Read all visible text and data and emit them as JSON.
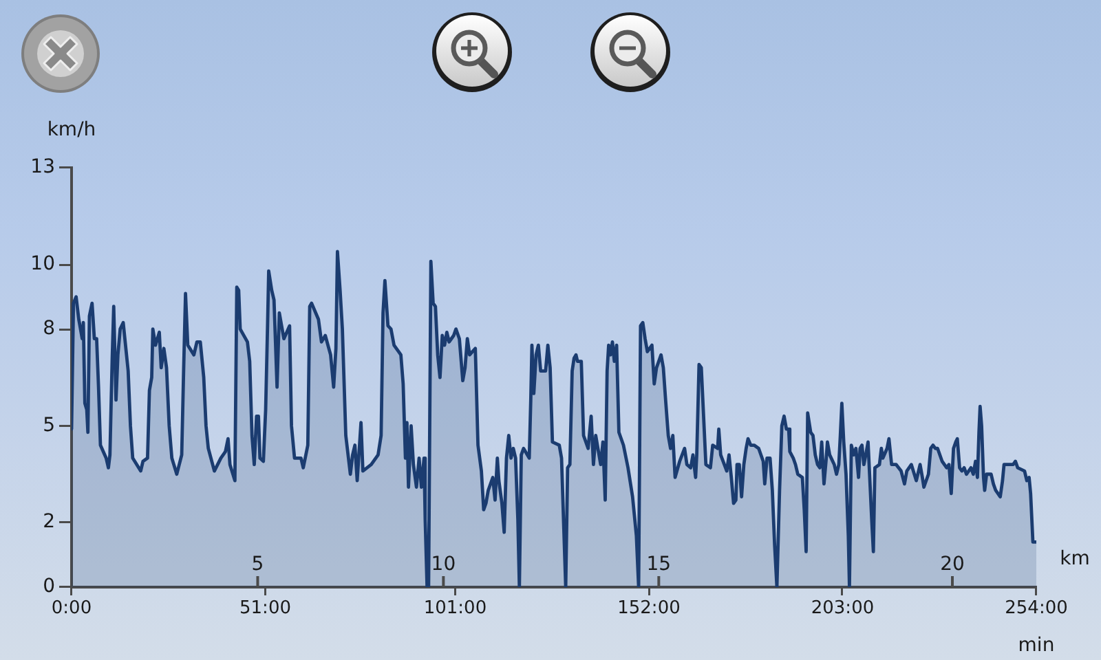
{
  "chart_data": {
    "type": "area",
    "ylabel": "km/h",
    "xlabel": "min",
    "x2label": "km",
    "xlim": [
      0,
      254
    ],
    "xticks": [
      {
        "value": 0,
        "label": "0:00"
      },
      {
        "value": 51,
        "label": "51:00"
      },
      {
        "value": 101,
        "label": "101:00"
      },
      {
        "value": 152,
        "label": "152:00"
      },
      {
        "value": 203,
        "label": "203:00"
      },
      {
        "value": 254,
        "label": "254:00"
      }
    ],
    "ylim": [
      0,
      13
    ],
    "yticks": [
      0,
      2,
      5,
      8,
      10,
      13
    ],
    "annotations": [
      {
        "text": "5",
        "x": 49.0,
        "y": 0
      },
      {
        "text": "10",
        "x": 97.9,
        "y": 0
      },
      {
        "text": "15",
        "x": 154.6,
        "y": 0
      },
      {
        "text": "20",
        "x": 231.9,
        "y": 0
      }
    ],
    "x": [
      0,
      0.5,
      1.2,
      1.9,
      2.8,
      3.1,
      3.5,
      4.0,
      4.3,
      4.7,
      5.4,
      6.0,
      6.6,
      7.1,
      7.6,
      9.1,
      9.7,
      10.1,
      10.7,
      11.1,
      11.7,
      12.2,
      12.8,
      13.6,
      14.9,
      15.5,
      16.1,
      18.2,
      18.8,
      20.0,
      20.5,
      21.1,
      21.4,
      22.1,
      23.1,
      23.6,
      24.3,
      25.0,
      25.7,
      26.4,
      27.7,
      29.0,
      29.5,
      30.0,
      30.6,
      32.2,
      33.0,
      33.9,
      34.8,
      35.4,
      36.0,
      37.6,
      39.3,
      40.5,
      41.2,
      41.7,
      43.0,
      43.5,
      44.0,
      44.4,
      46.3,
      46.9,
      47.5,
      48.1,
      48.7,
      49.2,
      49.6,
      50.5,
      51.1,
      51.6,
      51.9,
      52.7,
      53.3,
      54.1,
      54.7,
      55.9,
      57.4,
      57.9,
      58.7,
      60.4,
      61.0,
      62.2,
      62.7,
      63.2,
      65.0,
      65.8,
      66.8,
      68.2,
      69.0,
      69.6,
      70.0,
      70.7,
      71.3,
      72.2,
      73.4,
      74.0,
      74.6,
      75.2,
      76.2,
      76.7,
      78.9,
      80.7,
      81.5,
      82.0,
      82.5,
      83.3,
      84.1,
      84.9,
      86.1,
      86.7,
      87.3,
      87.9,
      88.3,
      88.7,
      89.4,
      90.0,
      90.8,
      91.5,
      92.1,
      92.8,
      93.1,
      93.6,
      94.0,
      94.6,
      95.2,
      95.8,
      96.4,
      97.0,
      97.6,
      98.2,
      98.8,
      99.4,
      100.6,
      101.2,
      102.1,
      103.0,
      103.6,
      104.2,
      104.8,
      106.3,
      107.0,
      107.9,
      108.5,
      109.1,
      109.7,
      110.9,
      111.5,
      112.1,
      112.5,
      113.3,
      113.9,
      114.5,
      115.1,
      115.7,
      116.3,
      116.9,
      117.5,
      117.9,
      118.4,
      119.0,
      120.5,
      120.9,
      121.2,
      121.7,
      122.3,
      122.9,
      123.5,
      124.8,
      125.4,
      126.0,
      126.6,
      128.4,
      129.0,
      129.6,
      130.1,
      130.6,
      131.2,
      131.8,
      132.3,
      132.8,
      133.2,
      134.2,
      134.8,
      136.0,
      136.8,
      137.4,
      138.0,
      139.3,
      139.9,
      140.5,
      141.0,
      141.4,
      141.9,
      142.4,
      142.9,
      143.5,
      144.1,
      145.3,
      146.5,
      147.7,
      148.7,
      149.3,
      149.8,
      150.4,
      151.0,
      151.6,
      152.8,
      153.4,
      154.0,
      155.2,
      155.8,
      156.4,
      157.1,
      157.7,
      158.3,
      158.9,
      160.1,
      161.4,
      162.0,
      163.0,
      163.6,
      164.3,
      164.6,
      165.2,
      165.8,
      166.4,
      167.0,
      168.2,
      168.8,
      170.1,
      170.4,
      170.9,
      172.5,
      173.1,
      173.7,
      174.3,
      174.9,
      175.2,
      175.8,
      176.4,
      177.0,
      177.6,
      178.1,
      178.8,
      179.7,
      180.9,
      182.1,
      182.5,
      183.1,
      183.9,
      184.5,
      185.1,
      185.7,
      186.4,
      187.0,
      187.6,
      188.2,
      188.8,
      189.1,
      190.0,
      190.6,
      191.2,
      192.4,
      192.9,
      193.4,
      193.8,
      194.6,
      195.2,
      195.8,
      196.4,
      197.0,
      197.5,
      198.1,
      198.7,
      199.0,
      199.6,
      200.8,
      201.4,
      202.0,
      202.4,
      202.8,
      203.3,
      203.9,
      204.5,
      204.8,
      205.3,
      205.9,
      206.5,
      207.2,
      207.6,
      208.1,
      208.6,
      209.1,
      209.7,
      210.3,
      210.7,
      211.1,
      211.5,
      212.7,
      213.2,
      213.6,
      214.7,
      215.2,
      215.9,
      217.1,
      218.4,
      219.3,
      219.9,
      221.1,
      222.4,
      223.4,
      224.0,
      224.4,
      225.6,
      226.2,
      226.8,
      227.4,
      228.0,
      229.2,
      230.4,
      231.0,
      231.6,
      232.2,
      232.8,
      233.2,
      233.8,
      234.4,
      235.0,
      235.6,
      236.8,
      237.4,
      238.0,
      238.5,
      238.9,
      239.2,
      239.6,
      240.1,
      240.4,
      240.9,
      242.1,
      242.7,
      243.3,
      244.5,
      245.1,
      245.5,
      246.7,
      247.9,
      248.5,
      249.1,
      250.9,
      251.5,
      252.1,
      252.5,
      253.1,
      254
    ],
    "series": [
      {
        "color": "#1b3c70",
        "values": [
          4.9,
          8.8,
          9.0,
          8.3,
          7.7,
          8.2,
          5.7,
          5.5,
          4.8,
          8.4,
          8.8,
          7.7,
          7.7,
          6.2,
          4.4,
          4.0,
          3.7,
          4.1,
          7.1,
          8.7,
          5.8,
          7.2,
          8.0,
          8.2,
          6.7,
          5.0,
          4.0,
          3.6,
          3.9,
          4.0,
          6.1,
          6.5,
          8.0,
          7.5,
          7.9,
          6.8,
          7.4,
          6.8,
          5.0,
          4.0,
          3.5,
          4.1,
          6.7,
          9.1,
          7.5,
          7.2,
          7.6,
          7.6,
          6.5,
          5.0,
          4.3,
          3.6,
          4.0,
          4.2,
          4.6,
          3.8,
          3.3,
          9.3,
          9.2,
          8.0,
          7.6,
          7.0,
          4.7,
          3.8,
          5.3,
          5.3,
          4.0,
          3.9,
          5.5,
          8.1,
          9.8,
          9.2,
          8.9,
          6.2,
          8.5,
          7.7,
          8.1,
          5.0,
          4.0,
          4.0,
          3.7,
          4.4,
          8.7,
          8.8,
          8.3,
          7.6,
          7.8,
          7.2,
          6.2,
          7.4,
          10.4,
          9.2,
          8.0,
          4.7,
          3.5,
          4.1,
          4.4,
          3.3,
          5.1,
          3.6,
          3.8,
          4.1,
          4.7,
          8.5,
          9.5,
          8.1,
          8.0,
          7.5,
          7.3,
          7.2,
          6.3,
          4.0,
          5.1,
          3.1,
          5.0,
          3.8,
          3.1,
          4.0,
          3.1,
          4.0,
          2.1,
          0,
          0,
          10.1,
          8.8,
          8.7,
          7.2,
          6.5,
          7.8,
          7.5,
          7.9,
          7.6,
          7.8,
          8.0,
          7.7,
          6.4,
          6.8,
          7.7,
          7.2,
          7.4,
          4.4,
          3.6,
          2.4,
          2.6,
          3.0,
          3.4,
          2.7,
          4.0,
          3.3,
          2.6,
          1.7,
          4.0,
          4.7,
          4.0,
          4.3,
          4.0,
          2.1,
          0,
          4.1,
          4.3,
          4.0,
          5.8,
          7.5,
          6.0,
          7.2,
          7.5,
          6.7,
          6.7,
          7.5,
          6.8,
          4.5,
          4.4,
          4.0,
          1.8,
          0,
          3.7,
          3.8,
          6.7,
          7.1,
          7.2,
          7.0,
          7.0,
          4.7,
          4.3,
          5.3,
          3.8,
          4.7,
          3.8,
          4.5,
          2.7,
          6.7,
          7.5,
          7.2,
          7.6,
          7.0,
          7.5,
          4.8,
          4.4,
          3.7,
          2.8,
          1.6,
          0,
          8.1,
          8.2,
          7.7,
          7.3,
          7.5,
          6.3,
          6.8,
          7.2,
          6.8,
          5.8,
          4.7,
          4.3,
          4.7,
          3.4,
          3.9,
          4.3,
          3.8,
          3.7,
          4.1,
          3.4,
          4.1,
          6.9,
          6.8,
          5.3,
          3.8,
          3.7,
          4.4,
          4.3,
          4.9,
          4.1,
          3.6,
          4.1,
          3.4,
          2.6,
          2.7,
          3.8,
          3.8,
          2.8,
          3.8,
          4.3,
          4.6,
          4.4,
          4.4,
          4.3,
          3.9,
          3.2,
          4.0,
          4.0,
          3.0,
          1.3,
          0,
          3.0,
          5.0,
          5.3,
          4.9,
          4.9,
          4.2,
          4.0,
          3.8,
          3.5,
          3.4,
          2.4,
          1.1,
          5.4,
          4.8,
          4.7,
          4.1,
          3.8,
          3.7,
          4.5,
          3.2,
          4.0,
          4.5,
          4.1,
          3.8,
          3.5,
          3.8,
          4.7,
          5.7,
          4.5,
          3.5,
          1.6,
          0,
          4.4,
          4.1,
          4.3,
          3.4,
          4.3,
          4.4,
          3.8,
          4.1,
          4.5,
          3.0,
          2.0,
          1.1,
          3.7,
          3.8,
          4.3,
          4.0,
          4.3,
          4.6,
          3.8,
          3.8,
          3.6,
          3.2,
          3.6,
          3.8,
          3.3,
          3.8,
          3.4,
          3.1,
          3.5,
          4.3,
          4.4,
          4.3,
          4.3,
          3.9,
          3.7,
          3.8,
          2.9,
          4.3,
          4.5,
          4.6,
          3.7,
          3.6,
          3.7,
          3.5,
          3.7,
          3.5,
          3.9,
          3.4,
          4.8,
          5.6,
          5.0,
          3.4,
          3.0,
          3.5,
          3.5,
          3.2,
          3.0,
          2.8,
          3.3,
          3.8,
          3.8,
          3.8,
          3.9,
          3.7,
          3.6,
          3.3,
          3.4,
          2.9,
          1.4,
          1.4
        ]
      }
    ]
  }
}
